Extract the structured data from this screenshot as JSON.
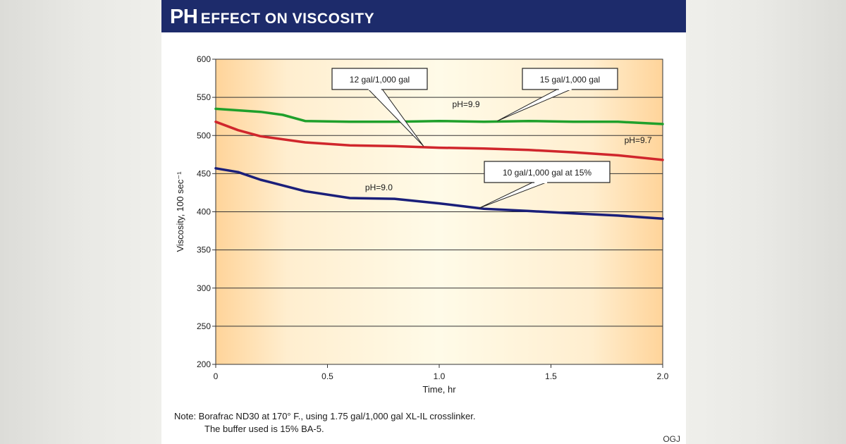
{
  "header": {
    "title_big": "PH",
    "title_small": "EFFECT ON VISCOSITY"
  },
  "colors": {
    "header_bg": "#1d2b6b",
    "green": "#1fa02b",
    "red": "#d0262c",
    "blue": "#1a1f7a",
    "plot_edge": "#ffd49a",
    "plot_center": "#fffbe8"
  },
  "chart_data": {
    "type": "line",
    "xlabel": "Time, hr",
    "ylabel": "Viscosity, 100 sec⁻¹",
    "xlim": [
      0,
      2.0
    ],
    "ylim": [
      200,
      600
    ],
    "x_ticks": [
      "0",
      "0.5",
      "1.0",
      "1.5",
      "2.0"
    ],
    "y_ticks": [
      "200",
      "250",
      "300",
      "350",
      "400",
      "450",
      "500",
      "550",
      "600"
    ],
    "grid": "horizontal",
    "series": [
      {
        "color": "#1fa02b",
        "x": [
          0,
          0.2,
          0.3,
          0.4,
          0.6,
          0.8,
          1.0,
          1.2,
          1.4,
          1.6,
          1.8,
          2.0
        ],
        "y": [
          535,
          531,
          527,
          519,
          518,
          518,
          519,
          518,
          519,
          518,
          518,
          515
        ]
      },
      {
        "color": "#d0262c",
        "x": [
          0,
          0.1,
          0.2,
          0.4,
          0.6,
          0.8,
          1.0,
          1.2,
          1.4,
          1.6,
          1.8,
          2.0
        ],
        "y": [
          518,
          507,
          499,
          491,
          487,
          486,
          484,
          483,
          481,
          478,
          474,
          468
        ]
      },
      {
        "color": "#1a1f7a",
        "x": [
          0,
          0.1,
          0.2,
          0.4,
          0.6,
          0.8,
          1.0,
          1.2,
          1.4,
          1.6,
          1.8,
          2.0
        ],
        "y": [
          457,
          452,
          442,
          427,
          418,
          417,
          411,
          404,
          401,
          398,
          395,
          391
        ]
      }
    ],
    "annotations": [
      {
        "text": "12 gal/1,000 gal",
        "target": [
          0.93,
          486
        ]
      },
      {
        "text": "15 gal/1,000 gal",
        "target": [
          1.26,
          519
        ]
      },
      {
        "text": "10 gal/1,000 gal at 15%",
        "target": [
          1.18,
          405
        ]
      }
    ],
    "inline_labels": [
      {
        "text": "pH=9.9",
        "x": 1.12,
        "y": 537
      },
      {
        "text": "pH=9.7",
        "x": 1.89,
        "y": 490
      },
      {
        "text": "pH=9.0",
        "x": 0.73,
        "y": 428
      }
    ]
  },
  "footer": {
    "note_line1": "Note: Borafrac ND30 at 170° F., using 1.75 gal/1,000 gal XL-IL crosslinker.",
    "note_line2": "The buffer used is 15% BA-5.",
    "credit": "OGJ"
  }
}
